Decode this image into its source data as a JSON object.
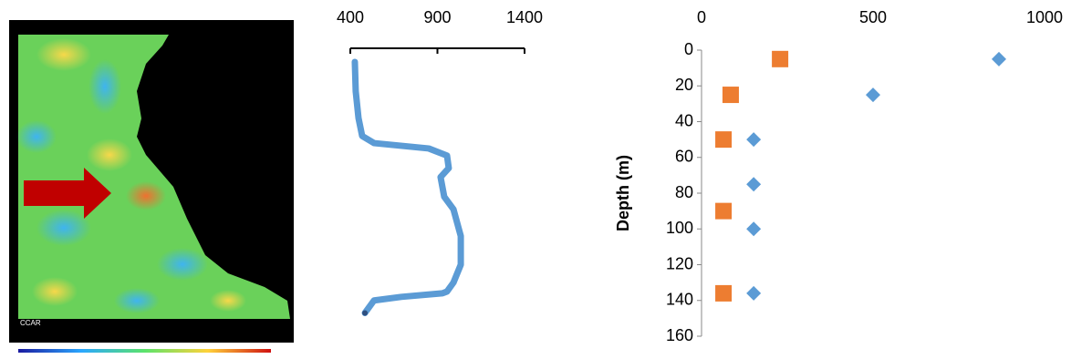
{
  "map_label": "CCAR",
  "chart_data": [
    {
      "type": "line",
      "color": "#5b9bd5",
      "xlim": [
        400,
        1400
      ],
      "xticks": [
        400,
        900,
        1400
      ],
      "ylim": [
        0,
        160
      ],
      "y_inverted": true,
      "x": [
        426,
        431,
        447,
        468,
        536,
        850,
        955,
        965,
        918,
        939,
        992,
        1034,
        1034,
        992,
        955,
        929,
        693,
        536,
        484
      ],
      "y": [
        6.6,
        23,
        38,
        48,
        52,
        55,
        59,
        66,
        71,
        82,
        89,
        104,
        120,
        130,
        135,
        136,
        138,
        140,
        147
      ]
    },
    {
      "type": "scatter",
      "y_label": "Depth (m)",
      "xlim": [
        0,
        1000
      ],
      "xticks": [
        0,
        500,
        1000
      ],
      "ylim": [
        0,
        160
      ],
      "yticks": [
        0,
        20,
        40,
        60,
        80,
        100,
        120,
        140,
        160
      ],
      "y_inverted": true,
      "series": [
        {
          "color": "#5b9bd5",
          "marker": "diamond",
          "x": [
            867,
            500,
            152,
            152,
            152,
            152
          ],
          "y": [
            5,
            25,
            50,
            75,
            100,
            136
          ]
        },
        {
          "color": "#ed7d31",
          "marker": "square",
          "x": [
            229,
            85,
            64,
            64,
            64
          ],
          "y": [
            5,
            25,
            50,
            90,
            136
          ]
        }
      ]
    }
  ]
}
